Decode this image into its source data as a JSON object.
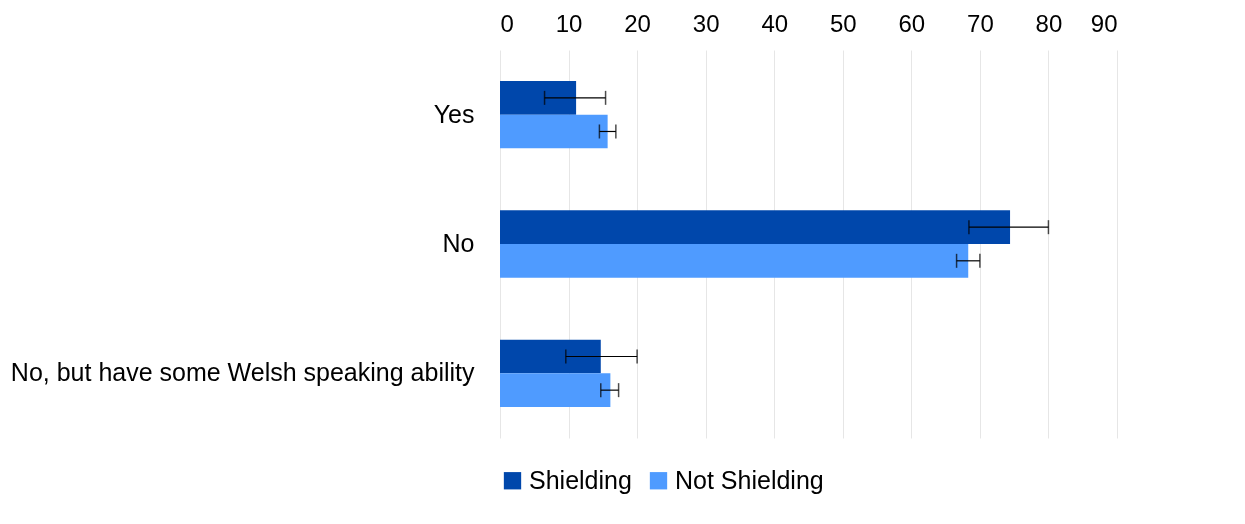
{
  "chart_data": {
    "type": "bar",
    "orientation": "horizontal",
    "categories": [
      "Yes",
      "No",
      "No, but have some Welsh speaking ability"
    ],
    "series": [
      {
        "name": "Shielding",
        "color": "#0047ab",
        "values": [
          11.1,
          74.4,
          14.7
        ],
        "errors": [
          [
            6.5,
            15.4
          ],
          [
            68.4,
            80
          ],
          [
            9.6,
            20
          ]
        ]
      },
      {
        "name": "Not Shielding",
        "color": "#4f9bff",
        "values": [
          15.7,
          68.3,
          16.1
        ],
        "errors": [
          [
            14.5,
            16.9
          ],
          [
            66.6,
            70
          ],
          [
            14.7,
            17.3
          ]
        ]
      }
    ],
    "xlim": [
      0,
      90
    ],
    "xticks": [
      0,
      10,
      20,
      30,
      40,
      50,
      60,
      70,
      80,
      90
    ],
    "grid": "x",
    "legend": "bottom"
  }
}
